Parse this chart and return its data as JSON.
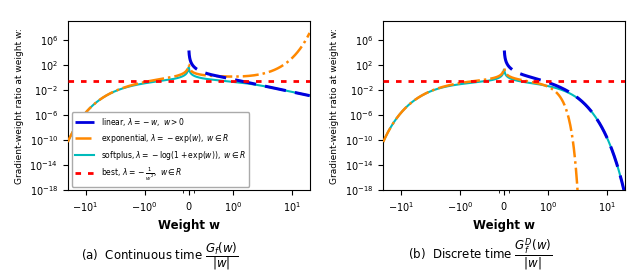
{
  "figsize": [
    6.4,
    2.75
  ],
  "dpi": 100,
  "ylim": [
    1e-18,
    1000000000.0
  ],
  "linthresh": 0.5,
  "linscale": 0.4,
  "ylabel": "Gradient-weight ratio at weight w:",
  "xlabel": "Weight w",
  "best_level": 0.3,
  "colors": {
    "linear": "#0000dd",
    "exponential": "#ff8800",
    "softplus": "#00bbbb",
    "best": "#ff0000"
  },
  "legend_labels": {
    "linear": "linear, $\\lambda = -w,\\ w > 0$",
    "exponential": "exponential, $\\lambda = -\\exp(w),\\ w \\in R$",
    "softplus": "softplus, $\\lambda = -\\log(1 + \\exp(w)),\\ w \\in R$",
    "best": "best, $\\lambda = -\\frac{1}{w^2},\\ w \\in R$"
  },
  "caption_a": "(a)  Continuous time $\\dfrac{G_f(w)}{|w|}$",
  "caption_b": "(b)  Discrete time $\\dfrac{G_f^D(w)}{|w|}$"
}
